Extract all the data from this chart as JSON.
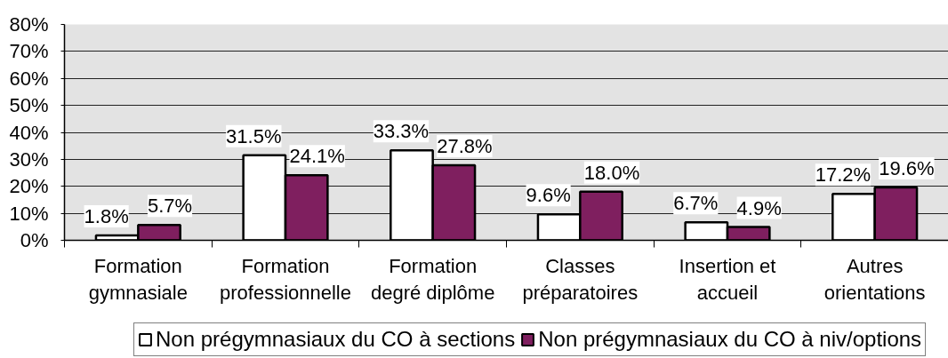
{
  "chart_data": {
    "type": "bar",
    "categories": [
      "Formation\ngymnasiale",
      "Formation\nprofessionnelle",
      "Formation\ndegré diplôme",
      "Classes\npréparatoires",
      "Insertion et\naccueil",
      "Autres\norientations"
    ],
    "series": [
      {
        "name": "Non prégymnasiaux du CO à sections",
        "color": "#ffffff",
        "values": [
          1.8,
          31.5,
          33.3,
          9.6,
          6.7,
          17.2
        ],
        "value_labels": [
          "1.8%",
          "31.5%",
          "33.3%",
          "9.6%",
          "6.7%",
          "17.2%"
        ]
      },
      {
        "name": "Non prégymnasiaux du CO à niv/options",
        "color": "#7f1f5f",
        "values": [
          5.7,
          24.1,
          27.8,
          18.0,
          4.9,
          19.6
        ],
        "value_labels": [
          "5.7%",
          "24.1%",
          "27.8%",
          "18.0%",
          "4.9%",
          "19.6%"
        ]
      }
    ],
    "ylim": [
      0,
      80
    ],
    "yticks": [
      {
        "value": 0,
        "label": "0%"
      },
      {
        "value": 10,
        "label": "10%"
      },
      {
        "value": 20,
        "label": "20%"
      },
      {
        "value": 30,
        "label": "30%"
      },
      {
        "value": 40,
        "label": "40%"
      },
      {
        "value": 50,
        "label": "50%"
      },
      {
        "value": 60,
        "label": "60%"
      },
      {
        "value": 70,
        "label": "70%"
      },
      {
        "value": 80,
        "label": "80%"
      }
    ],
    "grid": "y",
    "legend": "bottom"
  }
}
